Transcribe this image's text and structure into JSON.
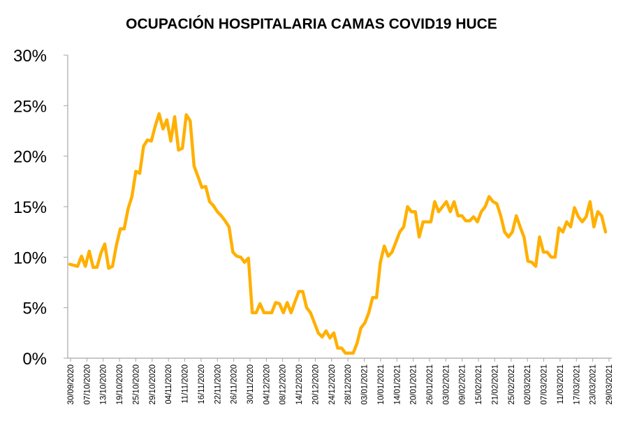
{
  "chart_data": {
    "type": "line",
    "title": "OCUPACIÓN HOSPITALARIA CAMAS COVID19 HUCE",
    "xlabel": "",
    "ylabel": "",
    "ylim": [
      0,
      30
    ],
    "y_ticks": [
      0,
      5,
      10,
      15,
      20,
      25,
      30
    ],
    "y_tick_labels": [
      "0%",
      "5%",
      "10%",
      "15%",
      "20%",
      "25%",
      "30%"
    ],
    "x_tick_labels": [
      "30/09/2020",
      "07/10/2020",
      "13/10/2020",
      "19/10/2020",
      "25/10/2020",
      "29/10/2020",
      "04/11/2020",
      "11/11/2020",
      "16/11/2020",
      "22/11/2020",
      "26/11/2020",
      "30/11/2020",
      "04/12/2020",
      "08/12/2020",
      "14/12/2020",
      "20/12/2020",
      "24/12/2020",
      "28/12/2020",
      "03/01/2021",
      "10/01/2021",
      "14/01/2021",
      "20/01/2021",
      "26/01/2021",
      "03/02/2021",
      "09/02/2021",
      "15/02/2021",
      "21/02/2021",
      "25/02/2021",
      "02/03/2021",
      "07/03/2021",
      "11/03/2021",
      "17/03/2021",
      "23/03/2021",
      "29/03/2021"
    ],
    "grid": false,
    "legend": "none",
    "series_color": "#ffb000",
    "series": [
      {
        "name": "",
        "values": [
          9.3,
          9.2,
          9.1,
          10.1,
          9.1,
          10.6,
          9.0,
          9.0,
          10.4,
          11.3,
          8.9,
          9.1,
          11.2,
          12.8,
          12.8,
          14.8,
          16.0,
          18.5,
          18.3,
          21.0,
          21.6,
          21.5,
          23.0,
          24.2,
          22.7,
          23.6,
          21.5,
          23.9,
          20.6,
          20.8,
          24.1,
          23.5,
          19.0,
          18.0,
          16.9,
          17.0,
          15.5,
          15.1,
          14.5,
          14.1,
          13.6,
          13.0,
          10.5,
          10.1,
          10.0,
          9.5,
          9.9,
          4.5,
          4.5,
          5.4,
          4.5,
          4.5,
          4.5,
          5.5,
          5.4,
          4.5,
          5.5,
          4.5,
          5.6,
          6.6,
          6.6,
          5.0,
          4.5,
          3.5,
          2.5,
          2.1,
          2.7,
          2.0,
          2.5,
          1.0,
          1.0,
          0.5,
          0.5,
          0.5,
          1.5,
          3.0,
          3.5,
          4.5,
          6.0,
          6.0,
          9.5,
          11.1,
          10.1,
          10.5,
          11.5,
          12.5,
          13.0,
          15.0,
          14.5,
          14.5,
          12.0,
          13.5,
          13.5,
          13.5,
          15.5,
          14.5,
          15.0,
          15.5,
          14.5,
          15.5,
          14.1,
          14.1,
          13.6,
          13.6,
          14.0,
          13.5,
          14.5,
          15.0,
          16.0,
          15.5,
          15.3,
          14.1,
          12.5,
          12.0,
          12.5,
          14.1,
          13.0,
          12.0,
          9.6,
          9.5,
          9.1,
          12.0,
          10.5,
          10.5,
          10.0,
          10.0,
          12.9,
          12.5,
          13.5,
          13.0,
          14.9,
          14.0,
          13.5,
          14.0,
          15.5,
          13.0,
          14.5,
          14.1,
          12.5
        ]
      }
    ]
  }
}
